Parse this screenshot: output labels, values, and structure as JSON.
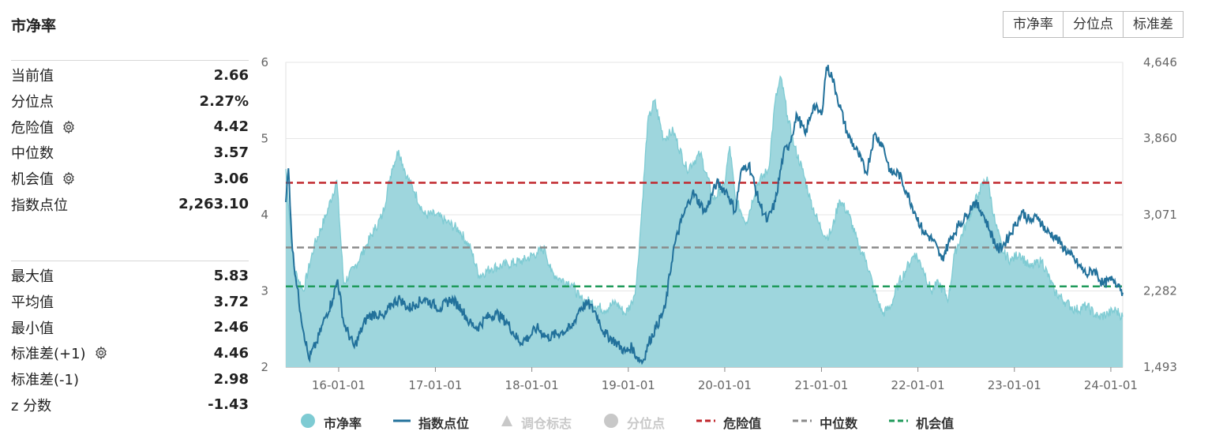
{
  "title": "市净率",
  "tabs": [
    "市净率",
    "分位点",
    "标准差"
  ],
  "stats_top": [
    {
      "label": "当前值",
      "value": "2.66",
      "gear": false
    },
    {
      "label": "分位点",
      "value": "2.27%",
      "gear": false
    },
    {
      "label": "危险值",
      "value": "4.42",
      "gear": true
    },
    {
      "label": "中位数",
      "value": "3.57",
      "gear": false
    },
    {
      "label": "机会值",
      "value": "3.06",
      "gear": true
    },
    {
      "label": "指数点位",
      "value": "2,263.10",
      "gear": false
    }
  ],
  "stats_bottom": [
    {
      "label": "最大值",
      "value": "5.83",
      "gear": false
    },
    {
      "label": "平均值",
      "value": "3.72",
      "gear": false
    },
    {
      "label": "最小值",
      "value": "2.46",
      "gear": false
    },
    {
      "label": "标准差(+1)",
      "value": "4.46",
      "gear": true
    },
    {
      "label": "标准差(-1)",
      "value": "2.98",
      "gear": false
    },
    {
      "label": "z 分数",
      "value": "-1.43",
      "gear": false
    }
  ],
  "legend": [
    {
      "name": "市净率",
      "symbol": "circle",
      "color": "#7ecbd3",
      "active": true
    },
    {
      "name": "指数点位",
      "symbol": "line",
      "color": "#22719b",
      "active": true
    },
    {
      "name": "调仓标志",
      "symbol": "triangle",
      "color": "#c8c8c8",
      "active": false
    },
    {
      "name": "分位点",
      "symbol": "circle",
      "color": "#c8c8c8",
      "active": false
    },
    {
      "name": "危险值",
      "symbol": "dash",
      "color": "#c0262c",
      "active": true
    },
    {
      "name": "中位数",
      "symbol": "dash",
      "color": "#8a8a8a",
      "active": true
    },
    {
      "name": "机会值",
      "symbol": "dash",
      "color": "#1f9a5a",
      "active": true
    }
  ],
  "chart_data": {
    "type": "area",
    "x_ticks": [
      "16-01-01",
      "17-01-01",
      "18-01-01",
      "19-01-01",
      "20-01-01",
      "21-01-01",
      "22-01-01",
      "23-01-01",
      "24-01-01"
    ],
    "y_left_ticks": [
      "2",
      "3",
      "4",
      "5",
      "6"
    ],
    "y_left_range": [
      2,
      6
    ],
    "y_right_ticks": [
      "1,493",
      "2,282",
      "3,071",
      "3,860",
      "4,646"
    ],
    "y_right_range": [
      1493,
      4646
    ],
    "x_range": [
      "2015-06-15",
      "2024-02-15"
    ],
    "ref_lines": [
      {
        "name": "危险值",
        "value": 4.42,
        "color": "#c0262c"
      },
      {
        "name": "中位数",
        "value": 3.57,
        "color": "#8a8a8a"
      },
      {
        "name": "机会值",
        "value": 3.06,
        "color": "#1f9a5a"
      }
    ],
    "series": [
      {
        "name": "市净率",
        "color": "#7ecbd3",
        "fill": "#9ed6dd",
        "points": [
          [
            "2015-06-15",
            4.6
          ],
          [
            "2015-07-15",
            3.3
          ],
          [
            "2015-08-20",
            3.0
          ],
          [
            "2015-10-01",
            3.6
          ],
          [
            "2015-11-15",
            4.0
          ],
          [
            "2015-12-25",
            4.45
          ],
          [
            "2016-01-20",
            3.1
          ],
          [
            "2016-02-29",
            3.3
          ],
          [
            "2016-04-15",
            3.6
          ],
          [
            "2016-05-15",
            3.8
          ],
          [
            "2016-06-15",
            4.0
          ],
          [
            "2016-07-20",
            4.6
          ],
          [
            "2016-08-15",
            4.85
          ],
          [
            "2016-09-15",
            4.5
          ],
          [
            "2016-10-15",
            4.3
          ],
          [
            "2016-11-20",
            4.0
          ],
          [
            "2017-01-01",
            4.0
          ],
          [
            "2017-02-15",
            3.9
          ],
          [
            "2017-04-01",
            3.8
          ],
          [
            "2017-05-15",
            3.55
          ],
          [
            "2017-06-15",
            3.2
          ],
          [
            "2017-08-01",
            3.3
          ],
          [
            "2017-10-01",
            3.35
          ],
          [
            "2017-12-01",
            3.4
          ],
          [
            "2018-01-20",
            3.5
          ],
          [
            "2018-02-20",
            3.55
          ],
          [
            "2018-03-15",
            3.25
          ],
          [
            "2018-04-20",
            3.15
          ],
          [
            "2018-06-01",
            3.1
          ],
          [
            "2018-07-01",
            2.9
          ],
          [
            "2018-08-15",
            2.85
          ],
          [
            "2018-10-01",
            2.75
          ],
          [
            "2018-11-15",
            2.85
          ],
          [
            "2018-12-20",
            2.7
          ],
          [
            "2019-01-15",
            2.85
          ],
          [
            "2019-02-01",
            3.1
          ],
          [
            "2019-02-20",
            4.0
          ],
          [
            "2019-03-15",
            5.2
          ],
          [
            "2019-04-10",
            5.5
          ],
          [
            "2019-05-15",
            5.0
          ],
          [
            "2019-06-20",
            5.1
          ],
          [
            "2019-08-10",
            4.6
          ],
          [
            "2019-10-01",
            4.8
          ],
          [
            "2019-11-20",
            4.2
          ],
          [
            "2019-12-31",
            4.4
          ],
          [
            "2020-01-20",
            4.9
          ],
          [
            "2020-02-10",
            4.2
          ],
          [
            "2020-03-23",
            3.9
          ],
          [
            "2020-05-01",
            4.4
          ],
          [
            "2020-06-15",
            4.6
          ],
          [
            "2020-07-10",
            5.5
          ],
          [
            "2020-08-01",
            5.8
          ],
          [
            "2020-08-25",
            5.3
          ],
          [
            "2020-09-20",
            4.9
          ],
          [
            "2020-10-20",
            4.6
          ],
          [
            "2020-11-20",
            4.2
          ],
          [
            "2020-12-20",
            3.9
          ],
          [
            "2021-01-20",
            3.7
          ],
          [
            "2021-02-10",
            3.8
          ],
          [
            "2021-03-10",
            4.2
          ],
          [
            "2021-04-15",
            4.0
          ],
          [
            "2021-05-20",
            3.6
          ],
          [
            "2021-06-20",
            3.4
          ],
          [
            "2021-07-20",
            3.0
          ],
          [
            "2021-08-20",
            2.7
          ],
          [
            "2021-09-20",
            2.8
          ],
          [
            "2021-10-20",
            3.1
          ],
          [
            "2021-11-20",
            3.3
          ],
          [
            "2021-12-20",
            3.5
          ],
          [
            "2022-01-20",
            3.3
          ],
          [
            "2022-02-20",
            3.0
          ],
          [
            "2022-03-20",
            3.1
          ],
          [
            "2022-04-27",
            2.9
          ],
          [
            "2022-05-20",
            3.5
          ],
          [
            "2022-07-05",
            3.9
          ],
          [
            "2022-08-20",
            4.3
          ],
          [
            "2022-09-20",
            4.5
          ],
          [
            "2022-10-20",
            3.9
          ],
          [
            "2022-11-20",
            3.5
          ],
          [
            "2022-12-20",
            3.4
          ],
          [
            "2023-01-20",
            3.5
          ],
          [
            "2023-03-01",
            3.3
          ],
          [
            "2023-04-15",
            3.4
          ],
          [
            "2023-06-01",
            3.0
          ],
          [
            "2023-07-15",
            2.85
          ],
          [
            "2023-08-20",
            2.75
          ],
          [
            "2023-10-01",
            2.8
          ],
          [
            "2023-11-15",
            2.65
          ],
          [
            "2023-12-20",
            2.7
          ],
          [
            "2024-01-20",
            2.75
          ],
          [
            "2024-02-15",
            2.66
          ]
        ]
      },
      {
        "name": "指数点位",
        "axis": "right",
        "color": "#22719b",
        "points": [
          [
            "2015-06-15",
            3200
          ],
          [
            "2015-06-25",
            3550
          ],
          [
            "2015-07-10",
            2700
          ],
          [
            "2015-08-10",
            2050
          ],
          [
            "2015-09-10",
            1580
          ],
          [
            "2015-10-10",
            1750
          ],
          [
            "2015-11-10",
            2000
          ],
          [
            "2015-12-10",
            2200
          ],
          [
            "2015-12-28",
            2400
          ],
          [
            "2016-01-20",
            1950
          ],
          [
            "2016-02-29",
            1700
          ],
          [
            "2016-04-15",
            2000
          ],
          [
            "2016-05-20",
            2050
          ],
          [
            "2016-06-20",
            2000
          ],
          [
            "2016-07-20",
            2150
          ],
          [
            "2016-08-20",
            2200
          ],
          [
            "2016-09-20",
            2100
          ],
          [
            "2016-10-20",
            2150
          ],
          [
            "2016-11-20",
            2200
          ],
          [
            "2016-12-20",
            2150
          ],
          [
            "2017-01-20",
            2100
          ],
          [
            "2017-03-01",
            2200
          ],
          [
            "2017-04-10",
            2100
          ],
          [
            "2017-05-10",
            1950
          ],
          [
            "2017-06-10",
            1900
          ],
          [
            "2017-07-10",
            2000
          ],
          [
            "2017-08-20",
            2050
          ],
          [
            "2017-10-01",
            1950
          ],
          [
            "2017-11-15",
            1750
          ],
          [
            "2017-12-20",
            1800
          ],
          [
            "2018-01-20",
            1900
          ],
          [
            "2018-03-01",
            1800
          ],
          [
            "2018-04-20",
            1850
          ],
          [
            "2018-06-01",
            1900
          ],
          [
            "2018-07-01",
            2100
          ],
          [
            "2018-08-01",
            2150
          ],
          [
            "2018-09-01",
            2050
          ],
          [
            "2018-10-01",
            1850
          ],
          [
            "2018-11-15",
            1750
          ],
          [
            "2018-12-20",
            1650
          ],
          [
            "2019-01-15",
            1700
          ],
          [
            "2019-02-01",
            1600
          ],
          [
            "2019-02-25",
            1550
          ],
          [
            "2019-03-20",
            1750
          ],
          [
            "2019-04-15",
            1900
          ],
          [
            "2019-05-20",
            2100
          ],
          [
            "2019-06-20",
            2700
          ],
          [
            "2019-07-20",
            3000
          ],
          [
            "2019-09-01",
            3300
          ],
          [
            "2019-10-20",
            3100
          ],
          [
            "2019-12-01",
            3400
          ],
          [
            "2020-01-10",
            3300
          ],
          [
            "2020-02-10",
            3100
          ],
          [
            "2020-03-01",
            3500
          ],
          [
            "2020-04-01",
            3600
          ],
          [
            "2020-05-10",
            3200
          ],
          [
            "2020-06-10",
            3000
          ],
          [
            "2020-07-10",
            3200
          ],
          [
            "2020-08-10",
            3700
          ],
          [
            "2020-09-01",
            3800
          ],
          [
            "2020-10-01",
            4100
          ],
          [
            "2020-11-01",
            3900
          ],
          [
            "2020-12-01",
            4200
          ],
          [
            "2021-01-01",
            4100
          ],
          [
            "2021-01-20",
            4600
          ],
          [
            "2021-02-10",
            4500
          ],
          [
            "2021-03-01",
            4300
          ],
          [
            "2021-04-10",
            3900
          ],
          [
            "2021-05-20",
            3700
          ],
          [
            "2021-06-20",
            3500
          ],
          [
            "2021-07-20",
            3900
          ],
          [
            "2021-08-20",
            3800
          ],
          [
            "2021-09-20",
            3500
          ],
          [
            "2021-10-20",
            3500
          ],
          [
            "2021-11-20",
            3300
          ],
          [
            "2021-12-20",
            3100
          ],
          [
            "2022-01-20",
            2900
          ],
          [
            "2022-03-01",
            2800
          ],
          [
            "2022-04-01",
            2600
          ],
          [
            "2022-05-01",
            2800
          ],
          [
            "2022-06-01",
            2950
          ],
          [
            "2022-07-01",
            3050
          ],
          [
            "2022-08-01",
            3200
          ],
          [
            "2022-09-01",
            3100
          ],
          [
            "2022-10-01",
            2900
          ],
          [
            "2022-11-01",
            2700
          ],
          [
            "2022-12-01",
            2800
          ],
          [
            "2023-01-01",
            2950
          ],
          [
            "2023-02-01",
            3100
          ],
          [
            "2023-03-01",
            3000
          ],
          [
            "2023-04-01",
            3050
          ],
          [
            "2023-05-01",
            2900
          ],
          [
            "2023-06-01",
            2850
          ],
          [
            "2023-07-01",
            2750
          ],
          [
            "2023-08-01",
            2650
          ],
          [
            "2023-09-01",
            2550
          ],
          [
            "2023-10-01",
            2450
          ],
          [
            "2023-11-01",
            2500
          ],
          [
            "2023-12-01",
            2350
          ],
          [
            "2024-01-10",
            2400
          ],
          [
            "2024-02-01",
            2350
          ],
          [
            "2024-02-15",
            2263.1
          ]
        ]
      }
    ]
  }
}
